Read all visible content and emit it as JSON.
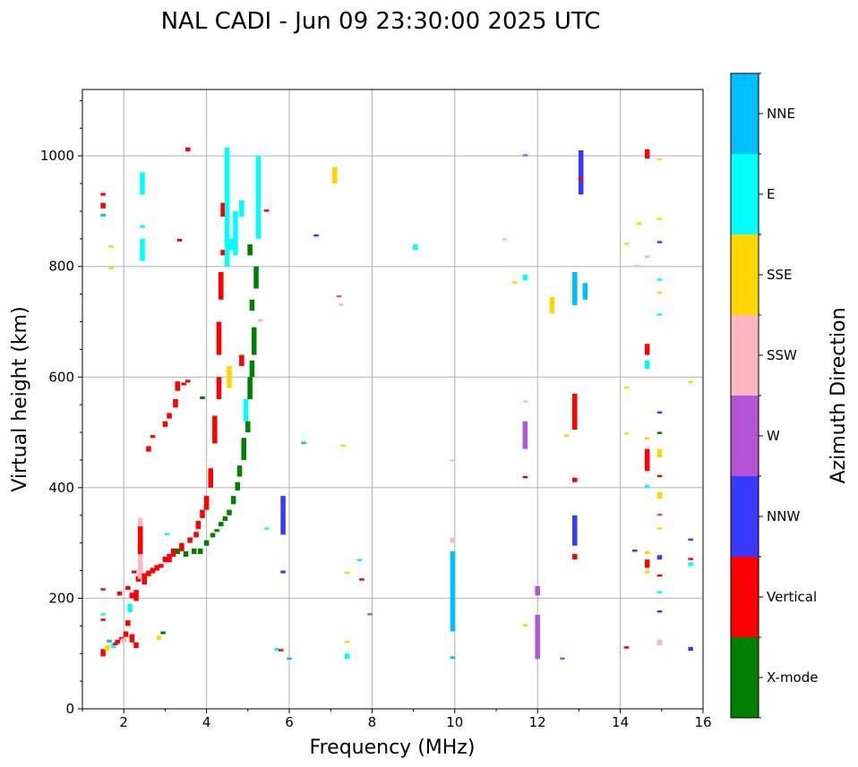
{
  "chart_data": {
    "type": "scatter",
    "title": "NAL CADI - Jun 09 23:30:00 2025 UTC",
    "xlabel": "Frequency (MHz)",
    "ylabel": "Virtual height (km)",
    "xlim": [
      1,
      16
    ],
    "ylim": [
      0,
      1120
    ],
    "xticks": [
      2,
      4,
      6,
      8,
      10,
      12,
      14,
      16
    ],
    "yticks": [
      0,
      200,
      400,
      600,
      800,
      1000
    ],
    "grid": true,
    "colorbar": {
      "label": "Azimuth Direction",
      "categories": [
        "X-mode",
        "Vertical",
        "NNW",
        "W",
        "SSW",
        "SSE",
        "E",
        "NNE"
      ],
      "colors": [
        "#008000",
        "#ff0000",
        "#3a3aff",
        "#b455d6",
        "#ffb6c1",
        "#ffd700",
        "#00ffff",
        "#00bfff"
      ]
    },
    "points_format": "[frequency_MHz, height_low_km, height_high_km, category_index]",
    "points": [
      [
        1.5,
        95,
        108,
        1
      ],
      [
        1.5,
        160,
        163,
        1
      ],
      [
        1.5,
        215,
        218,
        1
      ],
      [
        1.5,
        170,
        173,
        6
      ],
      [
        1.5,
        890,
        895,
        7
      ],
      [
        1.5,
        905,
        915,
        1
      ],
      [
        1.5,
        928,
        933,
        1
      ],
      [
        1.6,
        105,
        115,
        5
      ],
      [
        1.65,
        120,
        125,
        7
      ],
      [
        1.7,
        795,
        800,
        5
      ],
      [
        1.7,
        835,
        838,
        5
      ],
      [
        1.75,
        110,
        118,
        6
      ],
      [
        1.8,
        115,
        120,
        1
      ],
      [
        1.85,
        118,
        125,
        1
      ],
      [
        1.9,
        205,
        212,
        1
      ],
      [
        1.95,
        125,
        130,
        1
      ],
      [
        2.0,
        120,
        128,
        4
      ],
      [
        2.05,
        130,
        140,
        1
      ],
      [
        2.1,
        150,
        160,
        1
      ],
      [
        2.1,
        215,
        222,
        1
      ],
      [
        2.15,
        175,
        190,
        6
      ],
      [
        2.2,
        120,
        135,
        1
      ],
      [
        2.2,
        200,
        210,
        1
      ],
      [
        2.25,
        245,
        250,
        1
      ],
      [
        2.3,
        110,
        120,
        1
      ],
      [
        2.3,
        195,
        215,
        1
      ],
      [
        2.35,
        230,
        240,
        1
      ],
      [
        2.4,
        235,
        345,
        4
      ],
      [
        2.4,
        280,
        330,
        1
      ],
      [
        2.45,
        810,
        850,
        6
      ],
      [
        2.45,
        870,
        875,
        6
      ],
      [
        2.45,
        930,
        970,
        6
      ],
      [
        2.5,
        225,
        245,
        1
      ],
      [
        2.6,
        240,
        250,
        1
      ],
      [
        2.6,
        465,
        475,
        1
      ],
      [
        2.7,
        245,
        255,
        1
      ],
      [
        2.7,
        490,
        495,
        1
      ],
      [
        2.8,
        250,
        260,
        1
      ],
      [
        2.85,
        125,
        132,
        5
      ],
      [
        2.9,
        255,
        262,
        1
      ],
      [
        2.95,
        135,
        140,
        0
      ],
      [
        3.0,
        265,
        275,
        1
      ],
      [
        3.0,
        510,
        520,
        1
      ],
      [
        3.05,
        315,
        318,
        6
      ],
      [
        3.1,
        265,
        280,
        1
      ],
      [
        3.1,
        525,
        535,
        1
      ],
      [
        3.2,
        275,
        290,
        1
      ],
      [
        3.25,
        545,
        560,
        1
      ],
      [
        3.3,
        280,
        290,
        0
      ],
      [
        3.3,
        575,
        592,
        1
      ],
      [
        3.35,
        845,
        850,
        1
      ],
      [
        3.4,
        285,
        300,
        1
      ],
      [
        3.45,
        585,
        590,
        1
      ],
      [
        3.5,
        275,
        285,
        0
      ],
      [
        3.55,
        590,
        595,
        1
      ],
      [
        3.55,
        1008,
        1015,
        1
      ],
      [
        3.6,
        300,
        310,
        1
      ],
      [
        3.7,
        280,
        290,
        0
      ],
      [
        3.75,
        310,
        320,
        1
      ],
      [
        3.8,
        325,
        340,
        1
      ],
      [
        3.85,
        280,
        290,
        0
      ],
      [
        3.9,
        345,
        360,
        1
      ],
      [
        3.9,
        560,
        565,
        0
      ],
      [
        4.0,
        360,
        385,
        1
      ],
      [
        4.0,
        295,
        305,
        0
      ],
      [
        4.1,
        400,
        435,
        1
      ],
      [
        4.15,
        310,
        318,
        0
      ],
      [
        4.2,
        480,
        530,
        1
      ],
      [
        4.25,
        320,
        325,
        0
      ],
      [
        4.3,
        560,
        600,
        1
      ],
      [
        4.3,
        640,
        700,
        1
      ],
      [
        4.35,
        330,
        338,
        0
      ],
      [
        4.35,
        740,
        790,
        1
      ],
      [
        4.4,
        820,
        830,
        1
      ],
      [
        4.4,
        890,
        915,
        1
      ],
      [
        4.45,
        340,
        348,
        0
      ],
      [
        4.5,
        800,
        1015,
        6
      ],
      [
        4.55,
        580,
        620,
        5
      ],
      [
        4.55,
        350,
        360,
        0
      ],
      [
        4.6,
        830,
        850,
        6
      ],
      [
        4.65,
        370,
        385,
        0
      ],
      [
        4.7,
        820,
        900,
        6
      ],
      [
        4.75,
        395,
        410,
        0
      ],
      [
        4.8,
        420,
        440,
        0
      ],
      [
        4.85,
        620,
        640,
        1
      ],
      [
        4.85,
        890,
        920,
        6
      ],
      [
        4.9,
        450,
        490,
        0
      ],
      [
        4.95,
        520,
        560,
        6
      ],
      [
        5.0,
        500,
        520,
        0
      ],
      [
        5.05,
        560,
        600,
        0
      ],
      [
        5.05,
        820,
        840,
        0
      ],
      [
        5.1,
        600,
        630,
        0
      ],
      [
        5.1,
        720,
        740,
        0
      ],
      [
        5.15,
        640,
        690,
        0
      ],
      [
        5.2,
        760,
        800,
        0
      ],
      [
        5.25,
        850,
        1000,
        6
      ],
      [
        5.3,
        700,
        705,
        4
      ],
      [
        5.45,
        900,
        903,
        1
      ],
      [
        5.45,
        325,
        328,
        6
      ],
      [
        5.7,
        105,
        110,
        6
      ],
      [
        5.8,
        105,
        108,
        1
      ],
      [
        5.85,
        315,
        385,
        2
      ],
      [
        5.85,
        245,
        250,
        2
      ],
      [
        6.0,
        90,
        93,
        7
      ],
      [
        6.35,
        480,
        483,
        7
      ],
      [
        6.65,
        855,
        858,
        2
      ],
      [
        7.1,
        950,
        980,
        5
      ],
      [
        7.2,
        745,
        748,
        3
      ],
      [
        7.25,
        730,
        733,
        4
      ],
      [
        7.3,
        475,
        478,
        5
      ],
      [
        7.4,
        90,
        100,
        6
      ],
      [
        7.4,
        120,
        123,
        5
      ],
      [
        7.4,
        245,
        248,
        5
      ],
      [
        7.7,
        268,
        271,
        6
      ],
      [
        7.75,
        233,
        236,
        1
      ],
      [
        7.95,
        170,
        173,
        3
      ],
      [
        9.05,
        830,
        840,
        6
      ],
      [
        9.95,
        140,
        285,
        7
      ],
      [
        9.95,
        90,
        95,
        7
      ],
      [
        9.95,
        300,
        310,
        4
      ],
      [
        9.95,
        448,
        451,
        4
      ],
      [
        11.2,
        848,
        851,
        4
      ],
      [
        11.45,
        770,
        773,
        5
      ],
      [
        11.7,
        150,
        153,
        5
      ],
      [
        11.7,
        418,
        421,
        1
      ],
      [
        11.7,
        470,
        520,
        3
      ],
      [
        11.7,
        555,
        558,
        4
      ],
      [
        11.7,
        775,
        785,
        6
      ],
      [
        11.7,
        1000,
        1003,
        3
      ],
      [
        12.0,
        90,
        170,
        3
      ],
      [
        12.0,
        205,
        222,
        3
      ],
      [
        12.35,
        715,
        745,
        5
      ],
      [
        12.6,
        90,
        93,
        3
      ],
      [
        12.7,
        493,
        496,
        5
      ],
      [
        12.9,
        270,
        280,
        1
      ],
      [
        12.9,
        295,
        350,
        2
      ],
      [
        12.9,
        505,
        570,
        1
      ],
      [
        12.9,
        410,
        418,
        1
      ],
      [
        12.9,
        730,
        790,
        7
      ],
      [
        13.15,
        740,
        770,
        7
      ],
      [
        13.05,
        930,
        1010,
        2
      ],
      [
        13.05,
        955,
        960,
        1
      ],
      [
        14.15,
        110,
        113,
        1
      ],
      [
        14.15,
        497,
        500,
        5
      ],
      [
        14.15,
        580,
        583,
        5
      ],
      [
        14.15,
        840,
        843,
        5
      ],
      [
        14.35,
        285,
        288,
        2
      ],
      [
        14.4,
        800,
        803,
        4
      ],
      [
        14.45,
        875,
        880,
        5
      ],
      [
        14.65,
        255,
        270,
        1
      ],
      [
        14.65,
        245,
        250,
        5
      ],
      [
        14.65,
        280,
        285,
        5
      ],
      [
        14.65,
        430,
        470,
        1
      ],
      [
        14.65,
        400,
        405,
        6
      ],
      [
        14.65,
        488,
        491,
        5
      ],
      [
        14.65,
        615,
        630,
        6
      ],
      [
        14.65,
        640,
        660,
        1
      ],
      [
        14.65,
        815,
        820,
        4
      ],
      [
        14.65,
        995,
        1012,
        1
      ],
      [
        14.95,
        115,
        125,
        4
      ],
      [
        14.95,
        175,
        178,
        2
      ],
      [
        14.95,
        210,
        213,
        6
      ],
      [
        14.95,
        240,
        243,
        1
      ],
      [
        14.95,
        270,
        278,
        2
      ],
      [
        14.95,
        325,
        328,
        5
      ],
      [
        14.95,
        350,
        353,
        3
      ],
      [
        14.95,
        380,
        392,
        5
      ],
      [
        14.95,
        420,
        423,
        1
      ],
      [
        14.95,
        455,
        470,
        5
      ],
      [
        14.95,
        498,
        501,
        0
      ],
      [
        14.95,
        535,
        538,
        2
      ],
      [
        14.95,
        712,
        715,
        6
      ],
      [
        14.95,
        752,
        755,
        5
      ],
      [
        14.95,
        775,
        778,
        6
      ],
      [
        14.95,
        843,
        846,
        2
      ],
      [
        14.95,
        885,
        888,
        5
      ],
      [
        14.95,
        993,
        996,
        5
      ],
      [
        15.7,
        105,
        112,
        2
      ],
      [
        15.7,
        258,
        265,
        6
      ],
      [
        15.7,
        270,
        273,
        1
      ],
      [
        15.7,
        305,
        308,
        2
      ],
      [
        15.7,
        590,
        593,
        5
      ]
    ]
  }
}
